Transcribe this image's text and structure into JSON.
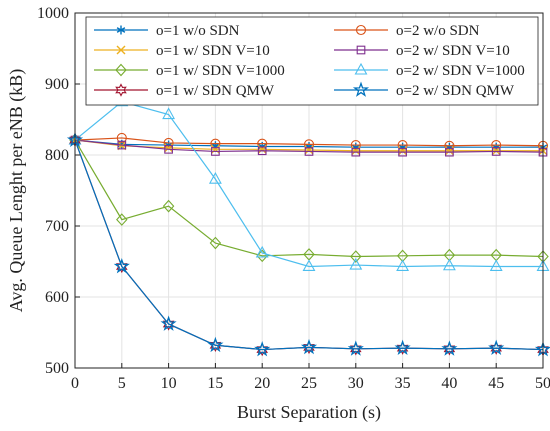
{
  "chart_data": {
    "type": "line",
    "title": "",
    "xlabel": "Burst Separation (s)",
    "ylabel": "Avg. Queue Lenght per eNB (kB)",
    "xlim": [
      0,
      50
    ],
    "ylim": [
      500,
      1000
    ],
    "xticks": [
      0,
      5,
      10,
      15,
      20,
      25,
      30,
      35,
      40,
      45,
      50
    ],
    "yticks": [
      500,
      600,
      700,
      800,
      900,
      1000
    ],
    "grid": true,
    "legend_position": "top-right",
    "x": [
      0,
      5,
      10,
      15,
      20,
      25,
      30,
      35,
      40,
      45,
      50
    ],
    "series": [
      {
        "name": "o=1 w/o SDN",
        "color": "#0072bd",
        "marker": "asterisk",
        "values": [
          821,
          815,
          814,
          813,
          812,
          812,
          811,
          811,
          811,
          811,
          811
        ]
      },
      {
        "name": "o=2 w/o SDN",
        "color": "#d95319",
        "marker": "circle",
        "values": [
          821,
          824,
          817,
          816,
          816,
          815,
          814,
          814,
          813,
          814,
          813
        ]
      },
      {
        "name": "o=1 w/ SDN V=10",
        "color": "#edb120",
        "marker": "x",
        "values": [
          821,
          813,
          810,
          808,
          808,
          807,
          806,
          806,
          806,
          806,
          806
        ]
      },
      {
        "name": "o=2 w/ SDN V=10",
        "color": "#7e2f8e",
        "marker": "square",
        "values": [
          821,
          814,
          808,
          805,
          806,
          805,
          804,
          804,
          804,
          805,
          804
        ]
      },
      {
        "name": "o=1 w/ SDN V=1000",
        "color": "#77ac30",
        "marker": "diamond",
        "values": [
          821,
          709,
          728,
          676,
          658,
          660,
          657,
          658,
          659,
          659,
          657
        ]
      },
      {
        "name": "o=2 w/ SDN V=1000",
        "color": "#4dbeee",
        "marker": "triangle",
        "values": [
          821,
          875,
          857,
          766,
          662,
          643,
          645,
          643,
          644,
          643,
          643
        ]
      },
      {
        "name": "o=1 w/ SDN QMW",
        "color": "#a2142f",
        "marker": "hexagram",
        "values": [
          821,
          643,
          562,
          532,
          526,
          529,
          527,
          528,
          527,
          528,
          526
        ]
      },
      {
        "name": "o=2 w/ SDN QMW",
        "color": "#0072bd",
        "marker": "pentagram",
        "values": [
          821,
          643,
          562,
          532,
          526,
          529,
          527,
          528,
          527,
          528,
          526
        ]
      }
    ]
  }
}
